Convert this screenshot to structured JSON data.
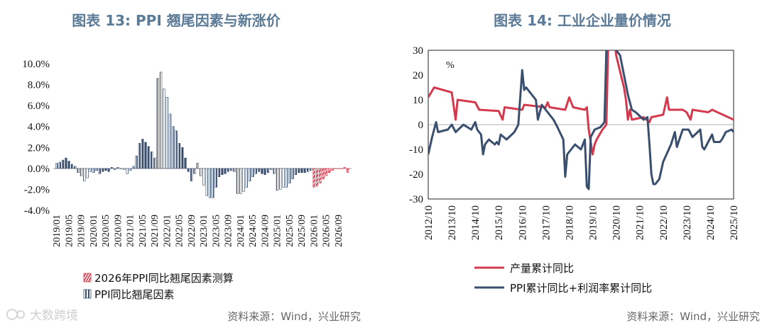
{
  "watermark": "大数跨境",
  "colors": {
    "red": "#d43a4e",
    "navy": "#3a4f6e",
    "title": "#5b7a96"
  },
  "chart_data": [
    {
      "title": "图表 13: PPI 翘尾因素与新涨价",
      "type": "bar",
      "ylim": [
        -4,
        10
      ],
      "yticks": [
        "10.0%",
        "8.0%",
        "6.0%",
        "4.0%",
        "2.0%",
        "0.0%",
        "-2.0%",
        "-4.0%"
      ],
      "categories_start": "2019-01",
      "xtick_labels": [
        "2019/01",
        "2019/05",
        "2019/09",
        "2020/01",
        "2020/05",
        "2020/09",
        "2021/01",
        "2021/05",
        "2021/09",
        "2022/01",
        "2022/05",
        "2022/09",
        "2023/01",
        "2023/05",
        "2023/09",
        "2024/01",
        "2024/05",
        "2024/09",
        "2025/01",
        "2025/05",
        "2025/09",
        "2026/01",
        "2026/05",
        "2026/09"
      ],
      "series": [
        {
          "name": "PPI同比翘尾因素",
          "color": "#3a4f6e",
          "values": [
            0.5,
            0.6,
            0.8,
            1.0,
            0.7,
            0.4,
            0.2,
            -0.4,
            -0.7,
            -1.2,
            -0.9,
            -0.3,
            -0.4,
            -0.2,
            -0.5,
            -0.3,
            -0.2,
            -0.3,
            0.1,
            -0.1,
            0.1,
            0.0,
            -0.1,
            -0.5,
            -0.2,
            0.2,
            1.2,
            2.4,
            2.8,
            2.5,
            2.1,
            1.6,
            1.0,
            8.6,
            9.2,
            7.6,
            6.8,
            5.2,
            4.0,
            3.6,
            2.4,
            2.0,
            1.0,
            -0.3,
            -1.2,
            -0.5,
            0.5,
            -0.7,
            -1.6,
            -2.6,
            -2.8,
            -2.8,
            -1.8,
            -0.8,
            -0.6,
            -0.5,
            -0.3,
            -0.2,
            -0.3,
            -2.4,
            -2.4,
            -2.2,
            -1.8,
            -1.2,
            -0.8,
            -0.5,
            -0.3,
            -0.5,
            -0.6,
            -0.4,
            -0.1,
            -0.5,
            -2.1,
            -2.0,
            -1.8,
            -1.8,
            -1.4,
            -1.0,
            -0.6,
            -0.4,
            -0.4,
            -0.4,
            -0.3,
            -0.2,
            0.0,
            0.0,
            0.0,
            0.0,
            0.0,
            0.0,
            0.0,
            0.0,
            0.0,
            0.0,
            0.0,
            -0.4
          ]
        },
        {
          "name": "2026年PPI同比翘尾因素测算",
          "color": "#d43a4e",
          "start_index": 84,
          "values": [
            -1.8,
            -1.7,
            -1.4,
            -1.0,
            -0.7,
            -0.4,
            -0.2,
            0.0,
            0.0,
            0.0,
            0.1,
            -0.4
          ]
        }
      ]
    },
    {
      "title": "图表 14: 工业企业量价情况",
      "type": "line",
      "ylim": [
        -30,
        30
      ],
      "yticks": [
        "30",
        "20",
        "10",
        "0",
        "-10",
        "-20",
        "-30"
      ],
      "unit_label": "%",
      "x_start": "2012-10",
      "x_end": "2025-10",
      "xtick_labels": [
        "2012/10",
        "2013/10",
        "2014/10",
        "2015/10",
        "2016/10",
        "2017/10",
        "2018/10",
        "2019/10",
        "2020/10",
        "2021/10",
        "2022/10",
        "2023/10",
        "2024/10",
        "2025/10"
      ],
      "series": [
        {
          "name": "产量累计同比",
          "color": "#d43a4e",
          "points": [
            [
              0,
              11
            ],
            [
              3,
              15
            ],
            [
              12,
              13
            ],
            [
              14,
              2
            ],
            [
              15,
              10
            ],
            [
              24,
              9
            ],
            [
              26,
              6
            ],
            [
              36,
              5.5
            ],
            [
              38,
              2
            ],
            [
              39,
              7
            ],
            [
              48,
              6
            ],
            [
              49,
              8
            ],
            [
              60,
              7
            ],
            [
              61,
              9
            ],
            [
              62,
              7
            ],
            [
              70,
              6
            ],
            [
              72,
              11
            ],
            [
              74,
              7
            ],
            [
              80,
              6
            ],
            [
              81,
              7
            ],
            [
              82,
              -2
            ],
            [
              84,
              -12
            ],
            [
              85,
              -8
            ],
            [
              86,
              -6
            ],
            [
              89,
              -2
            ],
            [
              91,
              0
            ],
            [
              92,
              35
            ],
            [
              95,
              35
            ],
            [
              96,
              28
            ],
            [
              100,
              15
            ],
            [
              101,
              10
            ],
            [
              102,
              2
            ],
            [
              103,
              6
            ],
            [
              104,
              2
            ],
            [
              110,
              3
            ],
            [
              113,
              1
            ],
            [
              114,
              3
            ],
            [
              120,
              4
            ],
            [
              122,
              11
            ],
            [
              123,
              6
            ],
            [
              130,
              6
            ],
            [
              132,
              5
            ],
            [
              134,
              2
            ],
            [
              135,
              6
            ],
            [
              143,
              5
            ],
            [
              145,
              6
            ],
            [
              156,
              2
            ]
          ]
        },
        {
          "name": "PPI累计同比+利润率累计同比",
          "color": "#3a4f6e",
          "points": [
            [
              0,
              -12
            ],
            [
              2,
              -5
            ],
            [
              4,
              1
            ],
            [
              5,
              -3
            ],
            [
              10,
              -2
            ],
            [
              12,
              0
            ],
            [
              14,
              -3
            ],
            [
              18,
              0
            ],
            [
              20,
              -1
            ],
            [
              22,
              -2
            ],
            [
              24,
              1
            ],
            [
              25,
              -2
            ],
            [
              27,
              -4
            ],
            [
              28,
              -12
            ],
            [
              29,
              -8
            ],
            [
              31,
              -6
            ],
            [
              34,
              -8
            ],
            [
              35,
              -7
            ],
            [
              36,
              -8
            ],
            [
              37,
              -4
            ],
            [
              40,
              -6
            ],
            [
              44,
              -3
            ],
            [
              46,
              0
            ],
            [
              48,
              22
            ],
            [
              49,
              14
            ],
            [
              50,
              15
            ],
            [
              52,
              13
            ],
            [
              55,
              10
            ],
            [
              56,
              2
            ],
            [
              58,
              8
            ],
            [
              60,
              6
            ],
            [
              64,
              2
            ],
            [
              66,
              -1
            ],
            [
              69,
              -6
            ],
            [
              70,
              -21
            ],
            [
              71,
              -12
            ],
            [
              74,
              -9
            ],
            [
              75,
              -8
            ],
            [
              78,
              -10
            ],
            [
              80,
              -6
            ],
            [
              81,
              -25
            ],
            [
              82,
              -26
            ],
            [
              83,
              -5
            ],
            [
              85,
              -2
            ],
            [
              88,
              -1
            ],
            [
              90,
              1
            ],
            [
              91,
              30
            ],
            [
              92,
              35
            ],
            [
              96,
              30
            ],
            [
              98,
              28
            ],
            [
              102,
              12
            ],
            [
              104,
              6
            ],
            [
              106,
              5
            ],
            [
              110,
              2
            ],
            [
              112,
              3
            ],
            [
              113,
              -8
            ],
            [
              114,
              -20
            ],
            [
              115,
              -24
            ],
            [
              116,
              -24
            ],
            [
              118,
              -22
            ],
            [
              120,
              -15
            ],
            [
              124,
              -8
            ],
            [
              126,
              -3
            ],
            [
              127,
              -9
            ],
            [
              130,
              -2
            ],
            [
              133,
              -2
            ],
            [
              135,
              -5
            ],
            [
              139,
              -2
            ],
            [
              140,
              -9
            ],
            [
              141,
              -10
            ],
            [
              145,
              -4
            ],
            [
              146,
              -7
            ],
            [
              149,
              -7
            ],
            [
              150,
              -6
            ],
            [
              152,
              -3
            ],
            [
              155,
              -2
            ],
            [
              156,
              -3
            ]
          ]
        }
      ]
    }
  ],
  "source_left": "资料来源：Wind，兴业研究",
  "source_right": "资料来源：Wind，兴业研究"
}
